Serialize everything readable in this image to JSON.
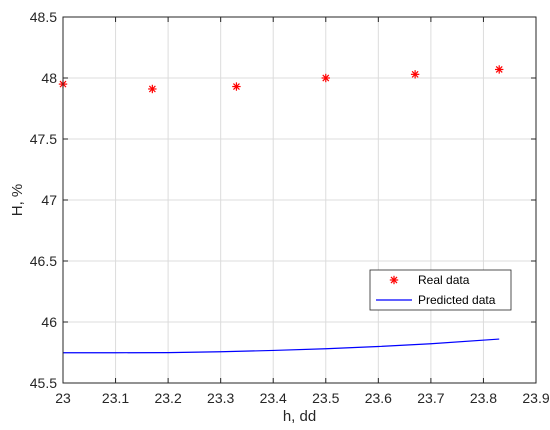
{
  "chart_data": {
    "type": "scatter",
    "title": "",
    "xlabel": "h, dd",
    "ylabel": "H, %",
    "xlim": [
      23,
      23.9
    ],
    "ylim": [
      45.5,
      48.5
    ],
    "xticks": [
      23,
      23.1,
      23.2,
      23.3,
      23.4,
      23.5,
      23.6,
      23.7,
      23.8,
      23.9
    ],
    "xtick_labels": [
      "23",
      "23.1",
      "23.2",
      "23.3",
      "23.4",
      "23.5",
      "23.6",
      "23.7",
      "23.8",
      "23.9"
    ],
    "yticks": [
      45.5,
      46,
      46.5,
      47,
      47.5,
      48,
      48.5
    ],
    "ytick_labels": [
      "45.5",
      "46",
      "46.5",
      "47",
      "47.5",
      "48",
      "48.5"
    ],
    "grid": true,
    "legend_position": "lower-right",
    "series": [
      {
        "name": "Real data",
        "type": "scatter",
        "marker": "asterisk",
        "color": "#ff0000",
        "x": [
          23.0,
          23.17,
          23.33,
          23.5,
          23.67,
          23.83
        ],
        "y": [
          47.95,
          47.91,
          47.93,
          48.0,
          48.03,
          48.07
        ]
      },
      {
        "name": "Predicted data",
        "type": "line",
        "color": "#0000ff",
        "x": [
          23.0,
          23.1,
          23.2,
          23.3,
          23.4,
          23.5,
          23.6,
          23.7,
          23.83
        ],
        "y": [
          45.748,
          45.748,
          45.749,
          45.756,
          45.767,
          45.781,
          45.799,
          45.822,
          45.86
        ]
      }
    ]
  }
}
